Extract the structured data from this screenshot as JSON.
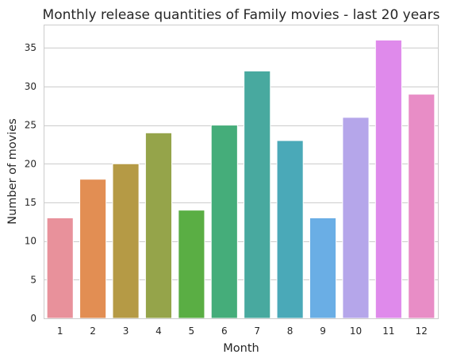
{
  "chart_data": {
    "type": "bar",
    "title": "Monthly release quantities of Family movies - last 20 years",
    "xlabel": "Month",
    "ylabel": "Number of movies",
    "categories": [
      "1",
      "2",
      "3",
      "4",
      "5",
      "6",
      "7",
      "8",
      "9",
      "10",
      "11",
      "12"
    ],
    "values": [
      13,
      18,
      20,
      24,
      14,
      25,
      32,
      23,
      13,
      26,
      36,
      29
    ],
    "colors": [
      "#e8919b",
      "#e28e53",
      "#b59a45",
      "#95a44a",
      "#5aae44",
      "#45ad7a",
      "#48a99f",
      "#4aa9b8",
      "#6aaee5",
      "#b5a6ea",
      "#df8aeb",
      "#e88dc6"
    ],
    "ylim": [
      0,
      38
    ],
    "yticks": [
      0,
      5,
      10,
      15,
      20,
      25,
      30,
      35
    ],
    "grid": "horizontal",
    "style": "seaborn-whitegrid"
  }
}
